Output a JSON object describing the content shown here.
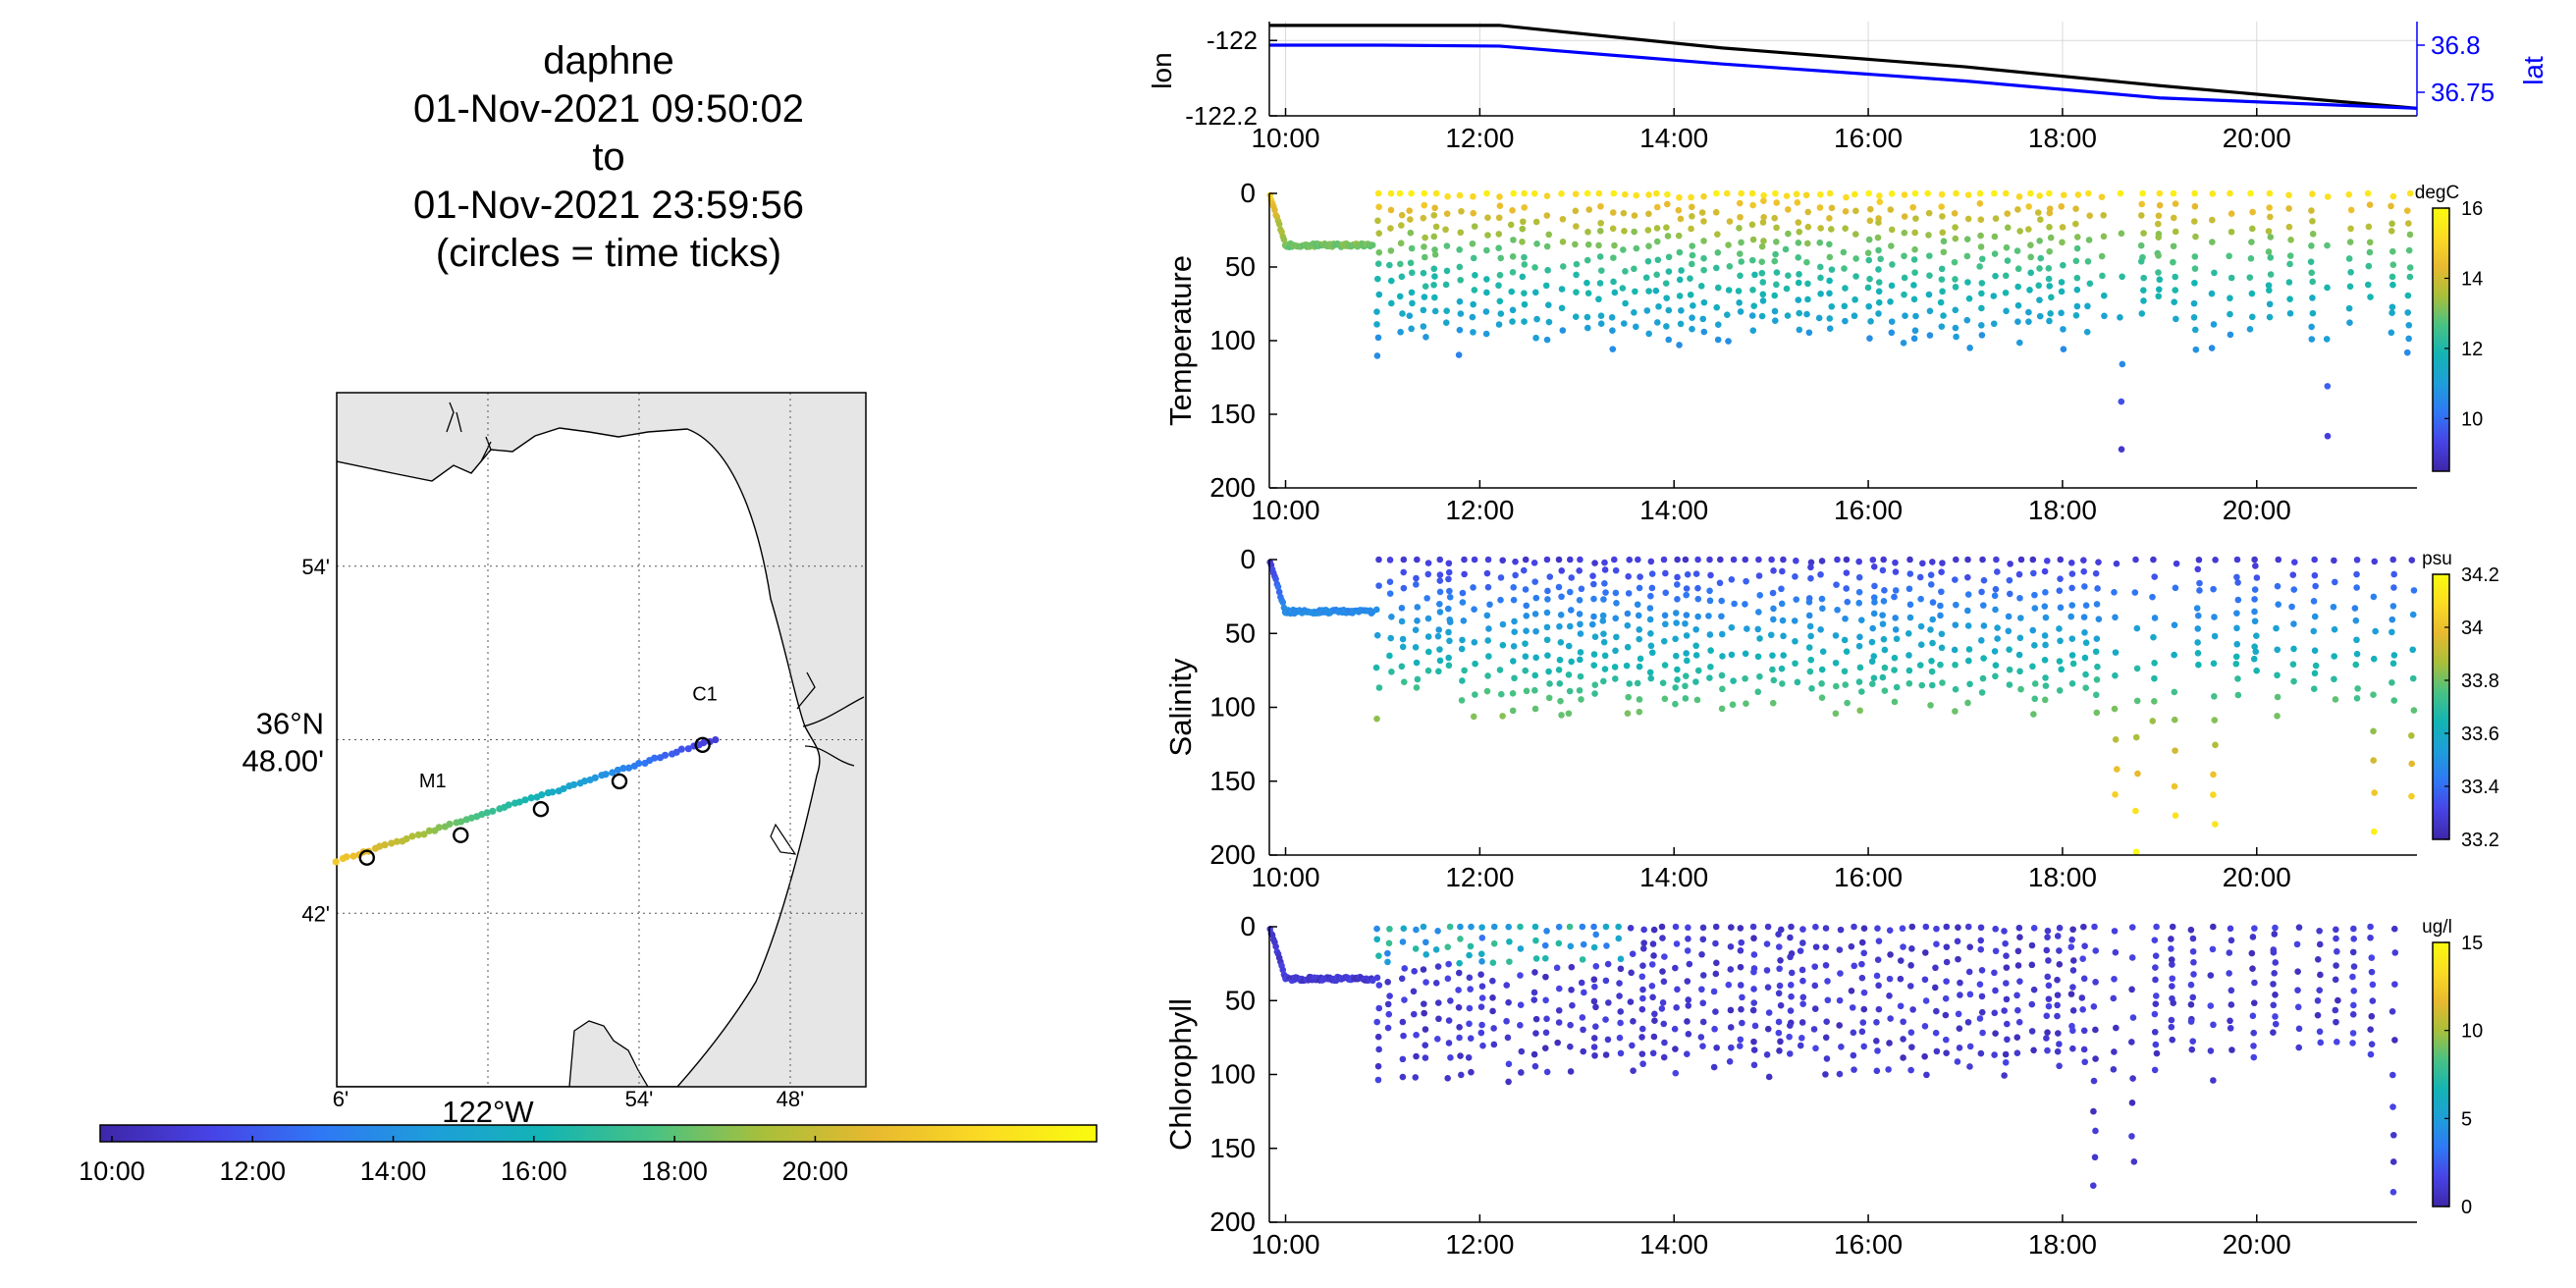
{
  "title": {
    "lines": [
      "daphne",
      "01-Nov-2021 09:50:02",
      "to",
      "01-Nov-2021 23:59:56",
      "(circles = time ticks)"
    ]
  },
  "colors": {
    "time_colormap": [
      "#3e26a8",
      "#4743e6",
      "#2f78f5",
      "#1e9ed9",
      "#13b4b4",
      "#49c283",
      "#a9bf3a",
      "#e8b92f",
      "#fbdc23",
      "#f9fb0e"
    ],
    "lon_line": "#000000",
    "lat_line": "#0000ff",
    "land": "#e6e6e6",
    "coast": "#000000"
  },
  "chart_data": [
    {
      "type": "map",
      "name": "track-map",
      "lat_ticks": [
        "54'",
        "36°N 48.00'",
        "42'"
      ],
      "lon_ticks": [
        "6'",
        "122°W",
        "54'",
        "48'"
      ],
      "lat_tick_values": [
        36.9,
        36.8,
        36.7
      ],
      "lon_tick_values": [
        -122.1,
        -122.0,
        -121.9,
        -121.8
      ],
      "xlim": [
        -122.1,
        -121.75
      ],
      "ylim": [
        36.6,
        37.0
      ],
      "stations": [
        {
          "label": "M1",
          "lon": -122.03,
          "lat": 36.75
        },
        {
          "label": "C1",
          "lon": -121.85,
          "lat": 36.8
        }
      ],
      "track": {
        "start": {
          "lon": -122.1,
          "lat": 36.73
        },
        "end": {
          "lon": -121.85,
          "lat": 36.8
        }
      },
      "time_ticks": [
        {
          "lon": -122.08,
          "lat": 36.732
        },
        {
          "lon": -122.018,
          "lat": 36.745
        },
        {
          "lon": -121.965,
          "lat": 36.76
        },
        {
          "lon": -121.913,
          "lat": 36.776
        },
        {
          "lon": -121.858,
          "lat": 36.797
        }
      ]
    },
    {
      "type": "colorbar",
      "name": "time-colorbar",
      "tick_labels": [
        "10:00",
        "12:00",
        "14:00",
        "16:00",
        "18:00",
        "20:00"
      ],
      "tick_values": [
        10,
        12,
        14,
        16,
        18,
        20
      ],
      "range": [
        9.833,
        24.0
      ]
    },
    {
      "type": "line",
      "name": "position",
      "ylabel_left": "lon",
      "ylabel_right": "lat",
      "xlim": [
        9.833,
        21.65
      ],
      "ylim_left": [
        -122.2,
        -121.95
      ],
      "ylim_right": [
        36.725,
        36.825
      ],
      "left_ticks": [
        "-122",
        "-122.2"
      ],
      "left_tick_values": [
        -122.0,
        -122.2
      ],
      "right_ticks": [
        "36.8",
        "36.75"
      ],
      "right_tick_values": [
        36.8,
        36.75
      ],
      "x_ticks": [
        "10:00",
        "12:00",
        "14:00",
        "16:00",
        "18:00",
        "20:00"
      ],
      "x_tick_values": [
        10,
        12,
        14,
        16,
        18,
        20
      ],
      "series": [
        {
          "name": "lon",
          "axis": "left",
          "x": [
            9.833,
            11.0,
            12.2,
            14.5,
            17.0,
            19.0,
            21.65
          ],
          "y": [
            -121.96,
            -121.96,
            -121.96,
            -122.02,
            -122.07,
            -122.12,
            -122.18
          ]
        },
        {
          "name": "lat",
          "axis": "right",
          "x": [
            9.833,
            11.0,
            12.2,
            14.5,
            17.0,
            19.0,
            21.65
          ],
          "y": [
            36.8,
            36.8,
            36.799,
            36.78,
            36.762,
            36.744,
            36.733
          ]
        }
      ]
    },
    {
      "type": "scatter",
      "name": "temperature",
      "ylabel": "Temperature",
      "colorbar_label": "degC",
      "colorbar_ticks": [
        "16",
        "14",
        "12",
        "10"
      ],
      "colorbar_tick_values": [
        16,
        14,
        12,
        10
      ],
      "color_range": [
        8.5,
        16
      ],
      "xlim": [
        9.833,
        21.65
      ],
      "ylim": [
        200,
        0
      ],
      "y_ticks": [
        "0",
        "50",
        "100",
        "150",
        "200"
      ],
      "y_tick_values": [
        0,
        50,
        100,
        150,
        200
      ],
      "x_ticks": [
        "10:00",
        "12:00",
        "14:00",
        "16:00",
        "18:00",
        "20:00"
      ],
      "x_tick_values": [
        10,
        12,
        14,
        16,
        18,
        20
      ]
    },
    {
      "type": "scatter",
      "name": "salinity",
      "ylabel": "Salinity",
      "colorbar_label": "psu",
      "colorbar_ticks": [
        "34.2",
        "34",
        "33.8",
        "33.6",
        "33.4",
        "33.2"
      ],
      "colorbar_tick_values": [
        34.2,
        34.0,
        33.8,
        33.6,
        33.4,
        33.2
      ],
      "color_range": [
        33.2,
        34.2
      ],
      "xlim": [
        9.833,
        21.65
      ],
      "ylim": [
        200,
        0
      ],
      "y_ticks": [
        "0",
        "50",
        "100",
        "150",
        "200"
      ],
      "y_tick_values": [
        0,
        50,
        100,
        150,
        200
      ],
      "x_ticks": [
        "10:00",
        "12:00",
        "14:00",
        "16:00",
        "18:00",
        "20:00"
      ],
      "x_tick_values": [
        10,
        12,
        14,
        16,
        18,
        20
      ]
    },
    {
      "type": "scatter",
      "name": "chlorophyll",
      "ylabel": "Chlorophyll",
      "colorbar_label": "ug/l",
      "colorbar_ticks": [
        "15",
        "10",
        "5",
        "0"
      ],
      "colorbar_tick_values": [
        15,
        10,
        5,
        0
      ],
      "color_range": [
        0,
        15
      ],
      "xlim": [
        9.833,
        21.65
      ],
      "ylim": [
        200,
        0
      ],
      "y_ticks": [
        "0",
        "50",
        "100",
        "150",
        "200"
      ],
      "y_tick_values": [
        0,
        50,
        100,
        150,
        200
      ],
      "x_ticks": [
        "10:00",
        "12:00",
        "14:00",
        "16:00",
        "18:00",
        "20:00"
      ],
      "x_tick_values": [
        10,
        12,
        14,
        16,
        18,
        20
      ]
    }
  ]
}
